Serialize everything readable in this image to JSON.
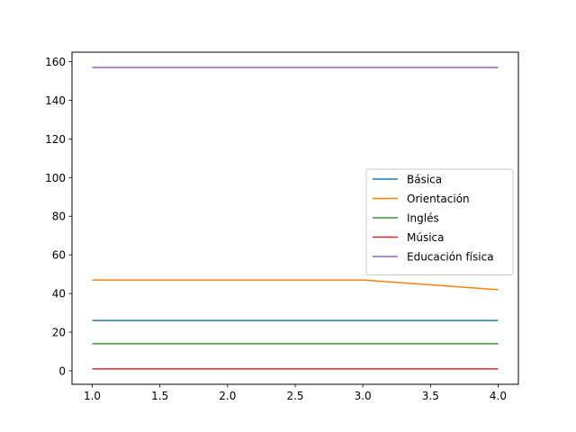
{
  "chart_data": {
    "type": "line",
    "title": "",
    "xlabel": "",
    "ylabel": "",
    "x": [
      1.0,
      2.0,
      3.0,
      4.0
    ],
    "xlim": [
      0.85,
      4.15
    ],
    "ylim": [
      -7.0,
      164.9
    ],
    "xticks": [
      1.0,
      1.5,
      2.0,
      2.5,
      3.0,
      3.5,
      4.0
    ],
    "xtick_labels": [
      "1.0",
      "1.5",
      "2.0",
      "2.5",
      "3.0",
      "3.5",
      "4.0"
    ],
    "yticks": [
      0,
      20,
      40,
      60,
      80,
      100,
      120,
      140,
      160
    ],
    "ytick_labels": [
      "0",
      "20",
      "40",
      "60",
      "80",
      "100",
      "120",
      "140",
      "160"
    ],
    "grid": false,
    "legend_position": "center-right",
    "series": [
      {
        "name": "Básica",
        "color": "#1f77b4",
        "values": [
          26,
          26,
          26,
          26
        ]
      },
      {
        "name": "Orientación",
        "color": "#ff7f0e",
        "values": [
          47,
          47,
          47,
          42
        ]
      },
      {
        "name": "Inglés",
        "color": "#2ca02c",
        "values": [
          14,
          14,
          14,
          14
        ]
      },
      {
        "name": "Música",
        "color": "#d62728",
        "values": [
          1,
          1,
          1,
          1
        ]
      },
      {
        "name": "Educación física",
        "color": "#9467bd",
        "values": [
          157,
          157,
          157,
          157
        ]
      }
    ]
  }
}
